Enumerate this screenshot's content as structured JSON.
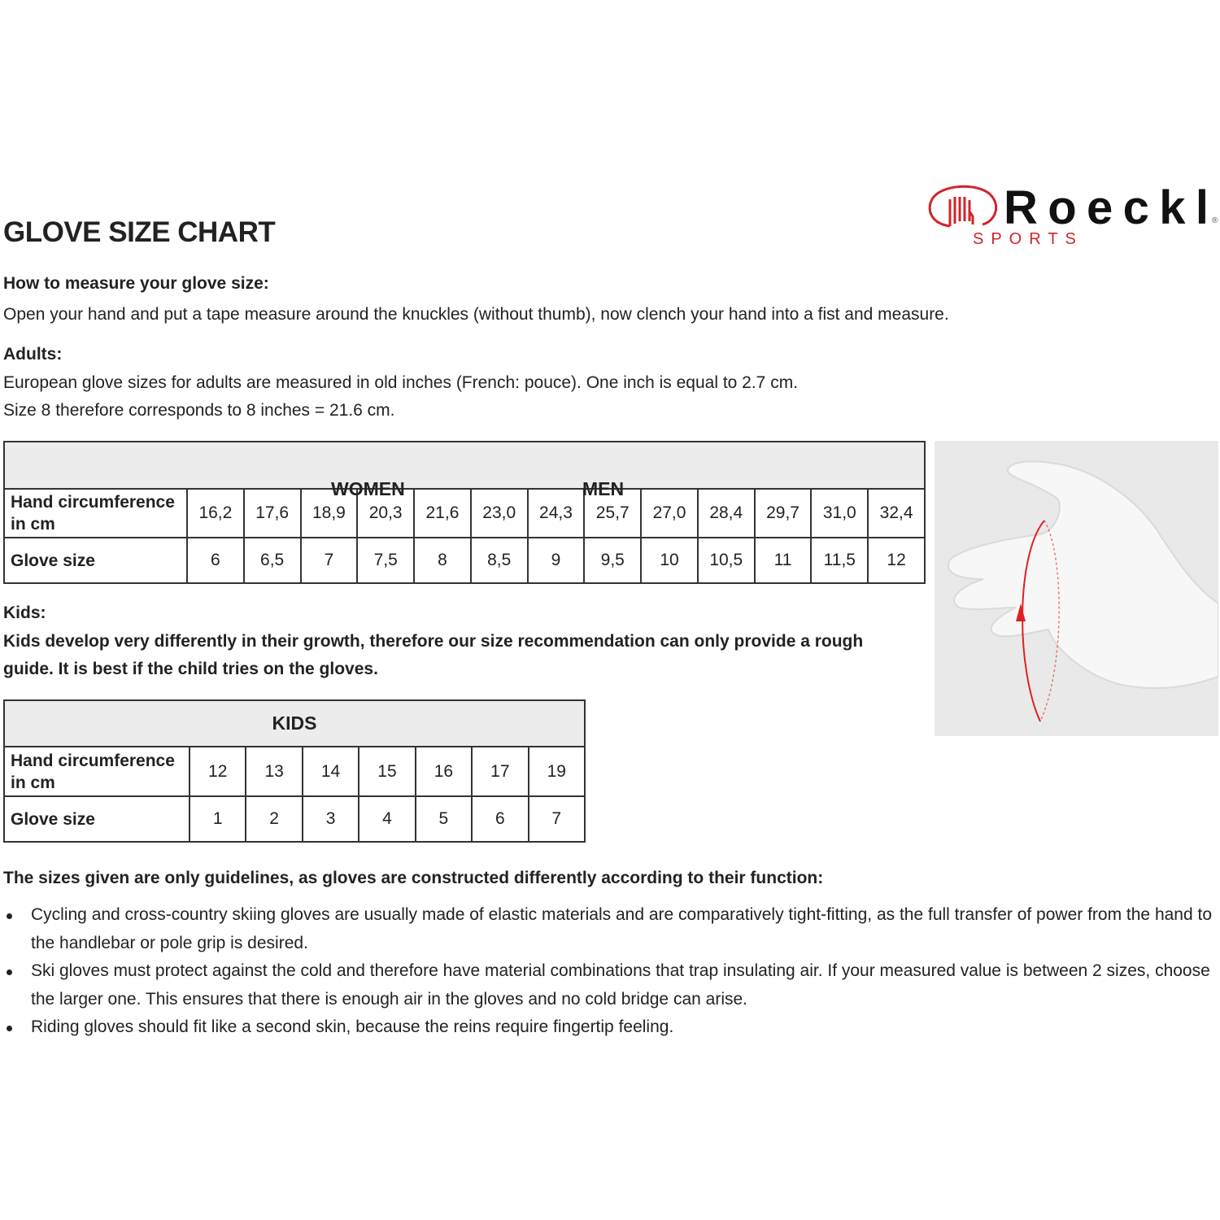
{
  "brand": {
    "name": "Roeckl",
    "sub": "SPORTS",
    "color": "#d2232a"
  },
  "title": "GLOVE SIZE CHART",
  "measure": {
    "heading": "How to measure your glove size:",
    "text": "Open your hand and put a tape measure around the knuckles (without thumb), now clench your hand into a fist and measure."
  },
  "adults": {
    "heading": "Adults:",
    "line1": "European glove sizes for adults are measured in old inches (French: pouce). One inch is equal to 2.7 cm.",
    "line2": "Size 8 therefore corresponds to 8 inches = 21.6 cm.",
    "table": {
      "group_women": "WOMEN",
      "group_men": "MEN",
      "row1_label": "Hand circumference in cm",
      "row2_label": "Glove size",
      "circumference": [
        "16,2",
        "17,6",
        "18,9",
        "20,3",
        "21,6",
        "23,0",
        "24,3",
        "25,7",
        "27,0",
        "28,4",
        "29,7",
        "31,0",
        "32,4"
      ],
      "sizes": [
        "6",
        "6,5",
        "7",
        "7,5",
        "8",
        "8,5",
        "9",
        "9,5",
        "10",
        "10,5",
        "11",
        "11,5",
        "12"
      ]
    }
  },
  "kids": {
    "heading": "Kids:",
    "text": "Kids develop very differently in their growth, therefore our size recommendation can only provide a rough guide. It is best if the child tries on the gloves.",
    "text_line1": "Kids develop very differently in their growth, therefore our size recommendation can only provide a rough",
    "text_line2": "guide. It is best if the child tries on the gloves.",
    "table": {
      "group": "KIDS",
      "row1_label": "Hand circumference in cm",
      "row2_label": "Glove size",
      "circumference": [
        "12",
        "13",
        "14",
        "15",
        "16",
        "17",
        "19"
      ],
      "sizes": [
        "1",
        "2",
        "3",
        "4",
        "5",
        "6",
        "7"
      ]
    }
  },
  "notes": {
    "heading": "The sizes given are only guidelines, as gloves are constructed differently according to their function:",
    "items": [
      "Cycling and cross-country skiing gloves are usually made of elastic materials and are comparatively tight-fitting, as the full transfer of power from the hand to the handlebar or pole grip is desired.",
      "Ski gloves must protect against the cold and therefore have material combinations that trap insulating air. If your measured value is between 2 sizes, choose the larger one. This ensures that there is enough air in the gloves and no cold bridge can arise.",
      "Riding gloves should fit like a second skin, because the reins require fingertip feeling."
    ]
  }
}
